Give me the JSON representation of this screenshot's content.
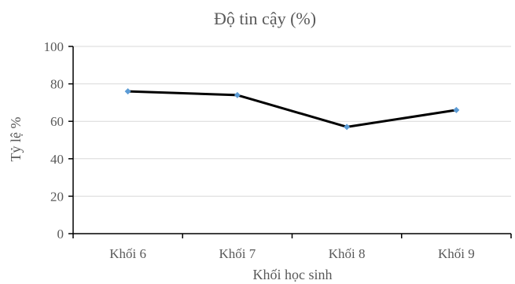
{
  "chart_data": {
    "type": "line",
    "title": "Độ tin cậy (%)",
    "xlabel": "Khối học sinh",
    "ylabel": "Tỷ lệ %",
    "categories": [
      "Khối 6",
      "Khối 7",
      "Khối 8",
      "Khối 9"
    ],
    "values": [
      76,
      74,
      57,
      66
    ],
    "ylim": [
      0,
      100
    ],
    "yticks": [
      0,
      20,
      40,
      60,
      80,
      100
    ],
    "grid": true,
    "line_color": "#000000",
    "marker_color": "#5b9bd5"
  }
}
